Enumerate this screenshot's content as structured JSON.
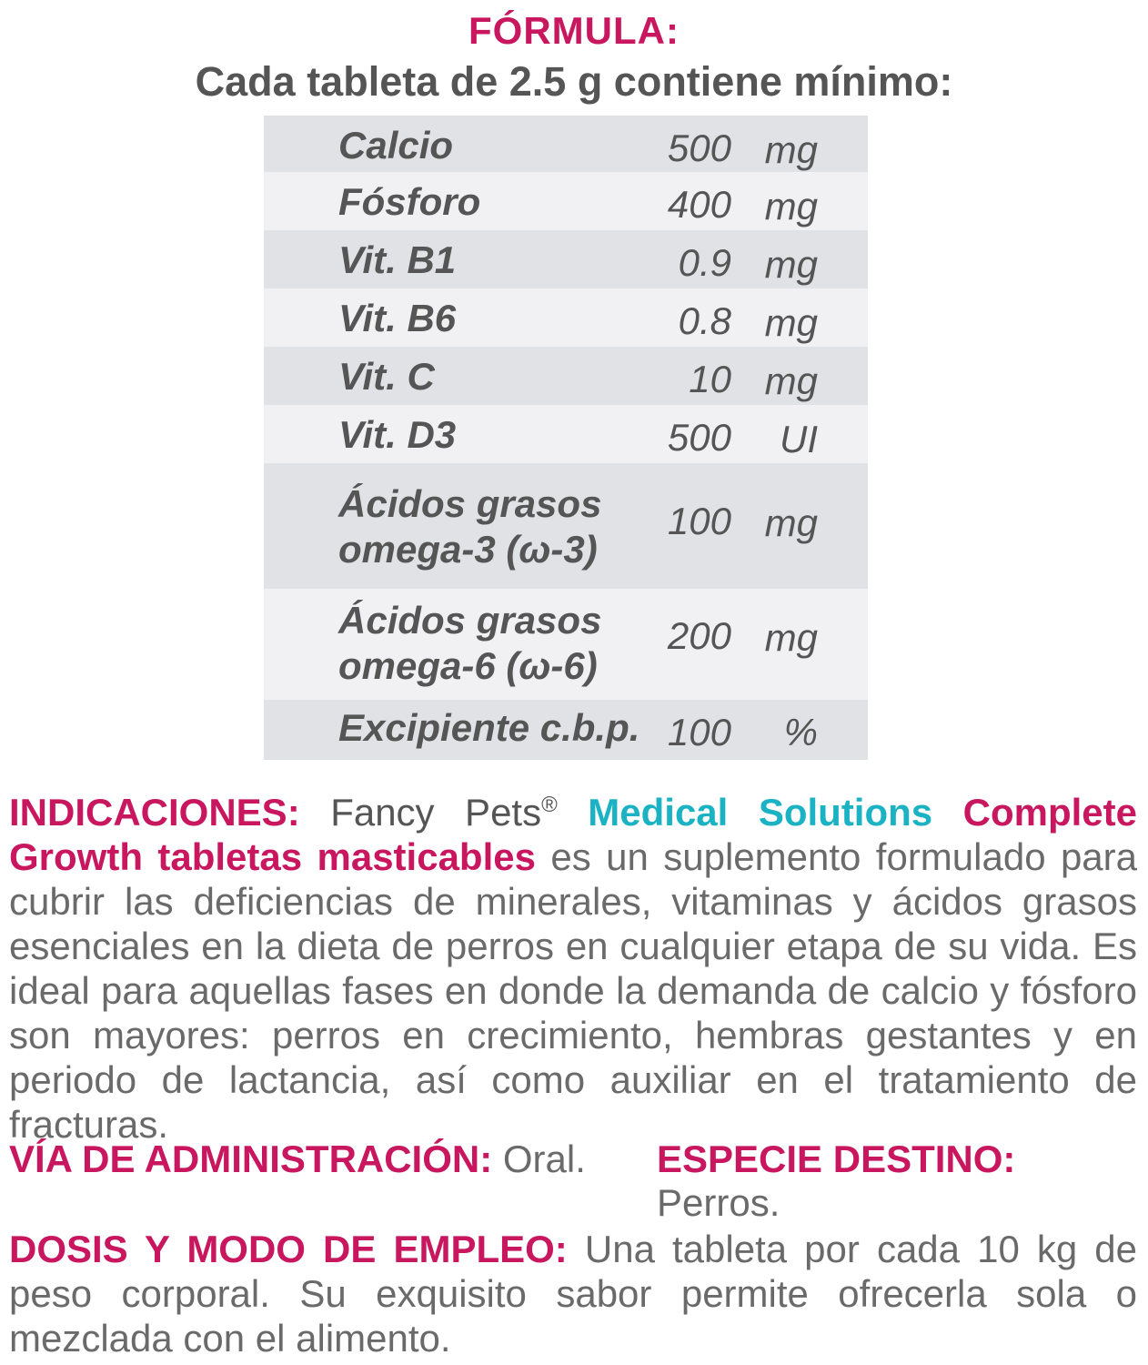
{
  "formula": {
    "heading": "FÓRMULA:",
    "subheading": "Cada tableta de 2.5 g contiene mínimo:",
    "rows": [
      {
        "name": "Calcio",
        "amount": "500",
        "unit": "mg"
      },
      {
        "name": "Fósforo",
        "amount": "400",
        "unit": "mg"
      },
      {
        "name": "Vit. B1",
        "amount": "0.9",
        "unit": "mg"
      },
      {
        "name": "Vit. B6",
        "amount": "0.8",
        "unit": "mg"
      },
      {
        "name": "Vit. C",
        "amount": "10",
        "unit": "mg"
      },
      {
        "name": "Vit. D3",
        "amount": "500",
        "unit": "UI"
      },
      {
        "name_line1": "Ácidos grasos",
        "name_line2": "omega-3 (ω-3)",
        "amount": "100",
        "unit": "mg"
      },
      {
        "name_line1": "Ácidos grasos",
        "name_line2": "omega-6 (ω-6)",
        "amount": "200",
        "unit": "mg"
      },
      {
        "name": "Excipiente c.b.p.",
        "amount": "100",
        "unit": "%"
      }
    ]
  },
  "indicaciones": {
    "label": "INDICACIONES:",
    "brand": "Fancy Pets",
    "registered": "®",
    "line": "Medical Solutions",
    "product": "Complete Growth tabletas masticables",
    "text": "es un suplemento formulado para cubrir las deficiencias de minerales, vitaminas y ácidos grasos esenciales en la dieta de perros en cualquier etapa de su vida. Es ideal para aquellas fases en donde la demanda de calcio y fósforo son mayores: perros en crecimiento, hembras gestantes y en periodo de lactancia, así como auxiliar en el tratamiento de fracturas."
  },
  "via": {
    "label": "VÍA DE ADMINISTRACIÓN:",
    "value": "Oral."
  },
  "especie": {
    "label": "ESPECIE DESTINO:",
    "value": "Perros."
  },
  "dosis": {
    "label": "DOSIS Y MODO DE EMPLEO:",
    "text": "Una tableta por cada 10 kg de peso corporal. Su exquisito sabor permite ofrecerla sola o mezclada con el alimento."
  },
  "colors": {
    "accent_pink": "#c8175f",
    "accent_cyan": "#1bb3c4",
    "text_grey": "#555555",
    "table_bg": "#f1f1f3",
    "table_shade": "#e1e2e5"
  }
}
